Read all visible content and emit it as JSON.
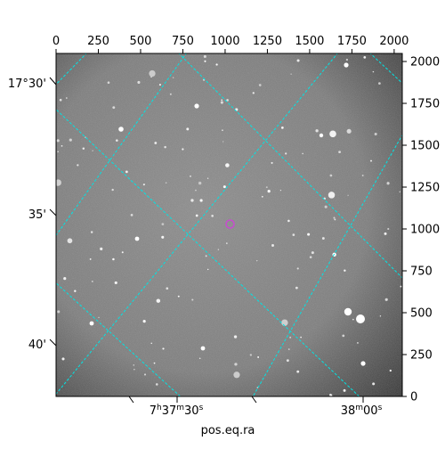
{
  "pixel_axes": {
    "x_ticks": [
      0,
      250,
      500,
      750,
      1000,
      1250,
      1500,
      1750,
      2000
    ],
    "y_ticks": [
      0,
      250,
      500,
      750,
      1000,
      1250,
      1500,
      1750,
      2000
    ],
    "x_range": [
      0,
      2048
    ],
    "y_range": [
      0,
      2048
    ]
  },
  "world_axes": {
    "dec_labels": [
      "17°30'",
      "35'",
      "40'"
    ],
    "ra_labels": [
      "7h37m30s",
      "38m00s"
    ],
    "xlabel": "pos.eq.ra"
  },
  "colors": {
    "grid": "#00e5e5",
    "marker": "#c84bd0",
    "image_bg": "#7a7a7a"
  },
  "marker": {
    "x_pix": 1024,
    "y_pix": 1024,
    "shape": "circle"
  }
}
